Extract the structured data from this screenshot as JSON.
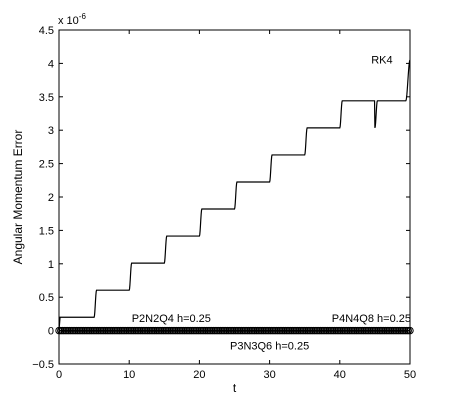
{
  "chart_data": {
    "type": "line",
    "title": "",
    "xlabel": "t",
    "ylabel": "Angular Momentum Error",
    "y_multiplier_label": "x 10",
    "y_multiplier_exponent": "-6",
    "xlim": [
      0,
      50
    ],
    "ylim": [
      -0.5,
      4.5
    ],
    "grid": false,
    "x_ticks": [
      0,
      10,
      20,
      30,
      40,
      50
    ],
    "x_tick_labels": [
      "0",
      "10",
      "20",
      "30",
      "40",
      "50"
    ],
    "y_ticks": [
      -0.5,
      0,
      0.5,
      1,
      1.5,
      2,
      2.5,
      3,
      3.5,
      4,
      4.5
    ],
    "y_tick_labels": [
      "−0.5",
      "0",
      "0.5",
      "1",
      "1.5",
      "2",
      "2.5",
      "3",
      "3.5",
      "4",
      "4.5"
    ],
    "series": [
      {
        "name": "RK4",
        "style": "solid",
        "color": "#000000",
        "step_period": 5,
        "step_size": 0.405,
        "x": [
          0,
          5,
          10,
          15,
          20,
          25,
          30,
          35,
          40,
          45,
          50
        ],
        "y": [
          0.2,
          0.605,
          1.01,
          1.415,
          1.82,
          2.225,
          2.63,
          3.035,
          3.44,
          3.845,
          4.05
        ]
      },
      {
        "name": "P2N2Q4 h=0.25",
        "style": "markers",
        "color": "#000000",
        "x": [
          0,
          50
        ],
        "y": [
          0,
          0
        ]
      },
      {
        "name": "P4N4Q8 h=0.25",
        "style": "markers",
        "color": "#000000",
        "x": [
          0,
          50
        ],
        "y": [
          0,
          0
        ]
      },
      {
        "name": "P3N3Q6 h=0.25",
        "style": "markers",
        "color": "#000000",
        "x": [
          0,
          50
        ],
        "y": [
          0,
          0
        ]
      }
    ],
    "annotations": [
      {
        "text": "RK4",
        "x": 46,
        "y": 4.0
      },
      {
        "text": "P2N2Q4 h=0.25",
        "x": 16,
        "y": 0.13
      },
      {
        "text": "P4N4Q8 h=0.25",
        "x": 44.5,
        "y": 0.13
      },
      {
        "text": "P3N3Q6 h=0.25",
        "x": 30,
        "y": -0.28
      }
    ]
  }
}
